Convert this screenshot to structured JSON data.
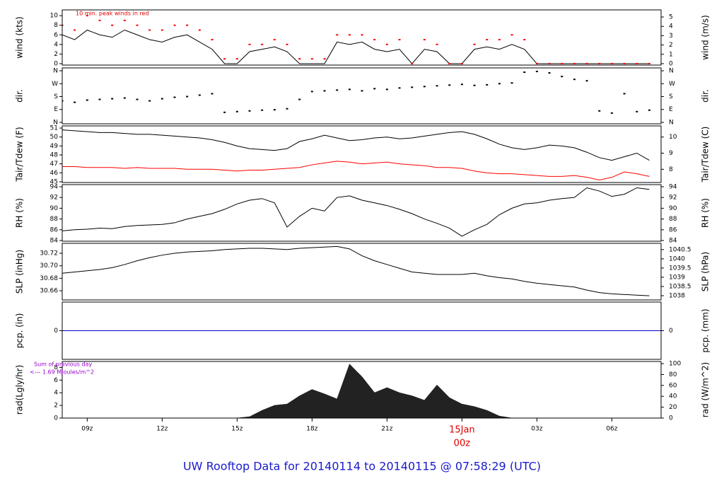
{
  "title": "UW Rooftop Data for 20140114  to  20140115 @ 07:58:29  (UTC)",
  "chart_data": [
    {
      "type": "line",
      "ylabel": "wind (kts)",
      "y2label": "wind (m/s)",
      "annotation": "10 min. peak winds in red",
      "annotation_color": "#dd0000",
      "xlim": [
        8,
        31.97
      ],
      "ylim": [
        -0.3,
        11.2
      ],
      "yticks": [
        0,
        2,
        4,
        6,
        8,
        10
      ],
      "y2lim": [
        -0.154,
        5.76
      ],
      "y2ticks": [
        0,
        1,
        2,
        3,
        4,
        5
      ],
      "x": [
        8,
        8.5,
        9,
        9.5,
        10,
        10.5,
        11,
        11.5,
        12,
        12.5,
        13,
        13.5,
        14,
        14.5,
        15,
        15.5,
        16,
        16.5,
        17,
        17.5,
        18,
        18.5,
        19,
        19.5,
        20,
        20.5,
        21,
        21.5,
        22,
        22.5,
        23,
        23.5,
        24,
        24.5,
        25,
        25.5,
        26,
        26.5,
        27,
        27.5,
        28,
        28.5,
        29,
        29.5,
        30,
        30.5,
        31,
        31.5
      ],
      "series": [
        {
          "style": "line",
          "color": "#000000",
          "values": [
            6,
            5,
            7,
            6,
            5.5,
            7,
            6,
            5,
            4.5,
            5.5,
            6,
            4.5,
            3,
            0,
            0,
            2.5,
            3,
            3.5,
            2.5,
            0,
            0,
            0,
            4.5,
            4,
            4.5,
            3,
            2.5,
            3,
            0,
            3,
            2.5,
            0,
            0,
            3,
            3.5,
            3,
            4,
            3,
            0,
            0,
            0,
            0,
            0,
            0,
            0,
            0,
            0,
            0
          ]
        },
        {
          "style": "points",
          "color": "#ff0000",
          "values": [
            8,
            7,
            10,
            9,
            8,
            9,
            8,
            7,
            7,
            8,
            8,
            7,
            5,
            1,
            1,
            4,
            4,
            5,
            4,
            1,
            1,
            1,
            6,
            6,
            6,
            5,
            4,
            5,
            0,
            5,
            4,
            0,
            0,
            4,
            5,
            5,
            6,
            5,
            0,
            0,
            0,
            0,
            0,
            0,
            0,
            0,
            0,
            0
          ]
        }
      ]
    },
    {
      "type": "scatter",
      "ylabel": "dir.",
      "y2label": "dir.",
      "xlim": [
        8,
        31.97
      ],
      "ylim": [
        -10,
        380
      ],
      "yticks": [
        {
          "value": 0,
          "label": "N"
        },
        {
          "value": 90,
          "label": "E"
        },
        {
          "value": 180,
          "label": "S"
        },
        {
          "value": 270,
          "label": "W"
        },
        {
          "value": 360,
          "label": "N"
        }
      ],
      "y2lim": [
        -10,
        380
      ],
      "y2ticks": [
        {
          "value": 0,
          "label": "N"
        },
        {
          "value": 90,
          "label": "E"
        },
        {
          "value": 180,
          "label": "S"
        },
        {
          "value": 270,
          "label": "W"
        },
        {
          "value": 360,
          "label": "N"
        }
      ],
      "x": [
        8,
        8.5,
        9,
        9.5,
        10,
        10.5,
        11,
        11.5,
        12,
        12.5,
        13,
        13.5,
        14,
        14.5,
        15,
        15.5,
        16,
        16.5,
        17,
        17.5,
        18,
        18.5,
        19,
        19.5,
        20,
        20.5,
        21,
        21.5,
        22,
        22.5,
        23,
        23.5,
        24,
        24.5,
        25,
        25.5,
        26,
        26.5,
        27,
        27.5,
        28,
        28.5,
        29,
        29.5,
        30,
        30.5,
        31,
        31.5
      ],
      "series": [
        {
          "style": "points",
          "color": "#000000",
          "values": [
            150,
            140,
            155,
            160,
            165,
            170,
            160,
            150,
            165,
            175,
            180,
            190,
            200,
            70,
            75,
            80,
            85,
            88,
            95,
            160,
            215,
            220,
            225,
            230,
            220,
            235,
            230,
            240,
            245,
            250,
            255,
            260,
            265,
            258,
            262,
            270,
            275,
            350,
            355,
            345,
            320,
            300,
            290,
            80,
            65,
            200,
            75,
            85
          ]
        }
      ]
    },
    {
      "type": "line",
      "ylabel": "Tair/Tdew (F)",
      "y2label": "Tair/Tdew (C)",
      "xlim": [
        8,
        31.97
      ],
      "ylim": [
        44.92,
        51.24
      ],
      "yticks": [
        45,
        46,
        47,
        48,
        49,
        50,
        51
      ],
      "y2lim": [
        7.18,
        10.69
      ],
      "y2ticks": [
        8,
        9,
        10
      ],
      "x": [
        8,
        8.5,
        9,
        9.5,
        10,
        10.5,
        11,
        11.5,
        12,
        12.5,
        13,
        13.5,
        14,
        14.5,
        15,
        15.5,
        16,
        16.5,
        17,
        17.5,
        18,
        18.5,
        19,
        19.5,
        20,
        20.5,
        21,
        21.5,
        22,
        22.5,
        23,
        23.5,
        24,
        24.5,
        25,
        25.5,
        26,
        26.5,
        27,
        27.5,
        28,
        28.5,
        29,
        29.5,
        30,
        30.5,
        31,
        31.5
      ],
      "series": [
        {
          "style": "line",
          "color": "#000000",
          "values": [
            50.8,
            50.7,
            50.6,
            50.5,
            50.5,
            50.4,
            50.3,
            50.3,
            50.2,
            50.1,
            50.0,
            49.9,
            49.7,
            49.4,
            49.0,
            48.7,
            48.6,
            48.5,
            48.7,
            49.5,
            49.8,
            50.2,
            49.9,
            49.6,
            49.7,
            49.9,
            50.0,
            49.8,
            49.9,
            50.1,
            50.3,
            50.5,
            50.6,
            50.3,
            49.8,
            49.2,
            48.8,
            48.6,
            48.8,
            49.1,
            49.0,
            48.8,
            48.3,
            47.7,
            47.4,
            47.8,
            48.2,
            47.4
          ]
        },
        {
          "style": "line",
          "color": "#ff0000",
          "values": [
            46.7,
            46.7,
            46.6,
            46.6,
            46.6,
            46.5,
            46.6,
            46.5,
            46.5,
            46.5,
            46.4,
            46.4,
            46.4,
            46.3,
            46.2,
            46.3,
            46.3,
            46.4,
            46.5,
            46.6,
            46.9,
            47.1,
            47.3,
            47.2,
            47.0,
            47.1,
            47.2,
            47.0,
            46.9,
            46.8,
            46.6,
            46.6,
            46.5,
            46.2,
            46.0,
            45.9,
            45.9,
            45.8,
            45.7,
            45.6,
            45.6,
            45.7,
            45.5,
            45.2,
            45.5,
            46.1,
            45.9,
            45.6
          ]
        }
      ]
    },
    {
      "type": "line",
      "ylabel": "RH (%)",
      "y2label": "RH (%)",
      "xlim": [
        8,
        31.97
      ],
      "ylim": [
        83.87,
        94.39
      ],
      "yticks": [
        84,
        86,
        88,
        90,
        92,
        94
      ],
      "y2lim": [
        83.87,
        94.39
      ],
      "y2ticks": [
        84,
        86,
        88,
        90,
        92,
        94
      ],
      "x": [
        8,
        8.5,
        9,
        9.5,
        10,
        10.5,
        11,
        11.5,
        12,
        12.5,
        13,
        13.5,
        14,
        14.5,
        15,
        15.5,
        16,
        16.5,
        17,
        17.5,
        18,
        18.5,
        19,
        19.5,
        20,
        20.5,
        21,
        21.5,
        22,
        22.5,
        23,
        23.5,
        24,
        24.5,
        25,
        25.5,
        26,
        26.5,
        27,
        27.5,
        28,
        28.5,
        29,
        29.5,
        30,
        30.5,
        31,
        31.5
      ],
      "series": [
        {
          "style": "line",
          "color": "#000000",
          "values": [
            85.8,
            86.0,
            86.1,
            86.3,
            86.2,
            86.6,
            86.8,
            86.9,
            87.0,
            87.3,
            88.0,
            88.5,
            89.0,
            89.8,
            90.8,
            91.5,
            91.8,
            91.0,
            86.5,
            88.5,
            90.0,
            89.5,
            92.0,
            92.3,
            91.5,
            91.0,
            90.5,
            89.8,
            89.0,
            88.0,
            87.2,
            86.3,
            84.8,
            86.0,
            87.0,
            88.8,
            90.0,
            90.8,
            91.0,
            91.5,
            91.8,
            92.0,
            93.8,
            93.2,
            92.2,
            92.6,
            93.8,
            93.5
          ]
        }
      ]
    },
    {
      "type": "line",
      "ylabel": "SLP (inHg)",
      "y2label": "SLP (hPa)",
      "xlim": [
        8,
        31.97
      ],
      "ylim": [
        30.6453,
        30.7359
      ],
      "yticks": [
        30.66,
        30.68,
        {
          "value": 30.7,
          "label": "30.70"
        },
        30.72
      ],
      "y2lim": [
        1037.77,
        1040.84
      ],
      "y2ticks": [
        1038,
        1038.5,
        1039,
        1039.5,
        1040,
        1040.5
      ],
      "x": [
        8,
        8.5,
        9,
        9.5,
        10,
        10.5,
        11,
        11.5,
        12,
        12.5,
        13,
        13.5,
        14,
        14.5,
        15,
        15.5,
        16,
        16.5,
        17,
        17.5,
        18,
        18.5,
        19,
        19.5,
        20,
        20.5,
        21,
        21.5,
        22,
        22.5,
        23,
        23.5,
        24,
        24.5,
        25,
        25.5,
        26,
        26.5,
        27,
        27.5,
        28,
        28.5,
        29,
        29.5,
        30,
        30.5,
        31,
        31.5
      ],
      "series": [
        {
          "style": "line",
          "color": "#000000",
          "values": [
            30.688,
            30.69,
            30.692,
            30.694,
            30.697,
            30.702,
            30.708,
            30.713,
            30.717,
            30.72,
            30.722,
            30.723,
            30.724,
            30.726,
            30.727,
            30.728,
            30.728,
            30.727,
            30.726,
            30.728,
            30.729,
            30.73,
            30.731,
            30.727,
            30.716,
            30.708,
            30.702,
            30.696,
            30.69,
            30.688,
            30.686,
            30.686,
            30.686,
            30.688,
            30.684,
            30.681,
            30.679,
            30.675,
            30.672,
            30.67,
            30.668,
            30.666,
            30.661,
            30.657,
            30.655,
            30.654,
            30.653,
            30.652
          ]
        }
      ]
    },
    {
      "type": "line",
      "ylabel": "pcp. (in)",
      "y2label": "pcp. (mm)",
      "xlim": [
        8,
        31.97
      ],
      "ylim": [
        -1,
        1
      ],
      "yticks": [
        0
      ],
      "y2lim": [
        -25.4,
        25.4
      ],
      "y2ticks": [
        0
      ],
      "x": [
        8,
        31.97
      ],
      "series": [
        {
          "style": "line",
          "color": "#0000cc",
          "values": [
            0,
            0
          ]
        }
      ]
    },
    {
      "type": "area",
      "ylabel": "rad(Lgly/hr)",
      "y2label": "rad (W/m^2)",
      "annotations": [
        "Sum of previous day",
        "<--- 1.69 MJoules/m^2"
      ],
      "annotation_color": "#9900cc",
      "day_label": "15Jan",
      "xlim": [
        8,
        31.97
      ],
      "ylim": [
        0,
        8.94
      ],
      "yticks": [
        0,
        2,
        4,
        6,
        8
      ],
      "y2lim": [
        0,
        104
      ],
      "y2ticks": [
        0,
        20,
        40,
        60,
        80,
        100
      ],
      "xticks": [
        {
          "value": 9,
          "label": "09z"
        },
        {
          "value": 12,
          "label": "12z"
        },
        {
          "value": 15,
          "label": "15z"
        },
        {
          "value": 18,
          "label": "18z"
        },
        {
          "value": 21,
          "label": "21z"
        },
        {
          "value": 24,
          "label": "00z"
        },
        {
          "value": 27,
          "label": "03z"
        },
        {
          "value": 30,
          "label": "06z"
        }
      ],
      "x": [
        8,
        8.5,
        9,
        9.5,
        10,
        10.5,
        11,
        11.5,
        12,
        12.5,
        13,
        13.5,
        14,
        14.5,
        15,
        15.5,
        16,
        16.5,
        17,
        17.5,
        18,
        18.5,
        19,
        19.5,
        20,
        20.5,
        21,
        21.5,
        22,
        22.5,
        23,
        23.5,
        24,
        24.5,
        25,
        25.5,
        26,
        26.5,
        27,
        27.5,
        28,
        28.5,
        29,
        29.5,
        30,
        30.5,
        31,
        31.5
      ],
      "series": [
        {
          "style": "area",
          "color": "#222222",
          "values": [
            0,
            0,
            0,
            0,
            0,
            0,
            0,
            0,
            0,
            0,
            0,
            0,
            0,
            0,
            0,
            0.2,
            1.2,
            2.0,
            2.2,
            3.5,
            4.5,
            3.8,
            3.0,
            8.5,
            6.5,
            4.0,
            4.8,
            4.0,
            3.5,
            2.8,
            5.2,
            3.2,
            2.2,
            1.8,
            1.2,
            0.3,
            0,
            0,
            0,
            0,
            0,
            0,
            0,
            0,
            0,
            0,
            0,
            0
          ]
        }
      ]
    }
  ]
}
